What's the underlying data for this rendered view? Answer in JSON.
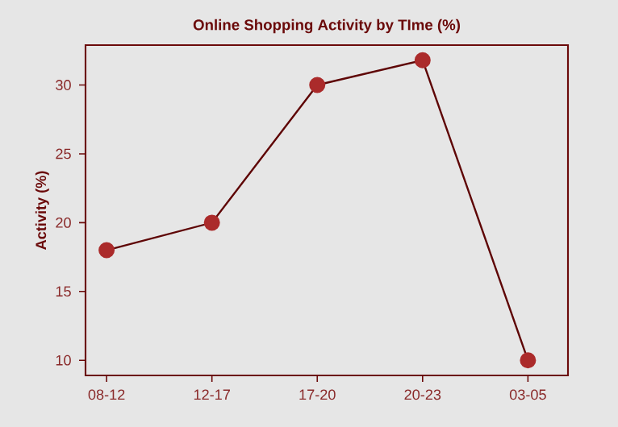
{
  "chart_data": {
    "type": "line",
    "title": "Online Shopping Activity by TIme (%)",
    "ylabel": "Activity (%)",
    "categories": [
      "08-12",
      "12-17",
      "17-20",
      "20-23",
      "03-05"
    ],
    "series": [
      {
        "color": "#ab2b2b",
        "values": [
          18,
          20,
          30,
          31.8,
          10
        ]
      }
    ],
    "ylim": [
      8.9,
      32.9
    ],
    "yticks": [
      10,
      15,
      20,
      25,
      30
    ],
    "marker": "circle",
    "line_style": "solid"
  }
}
